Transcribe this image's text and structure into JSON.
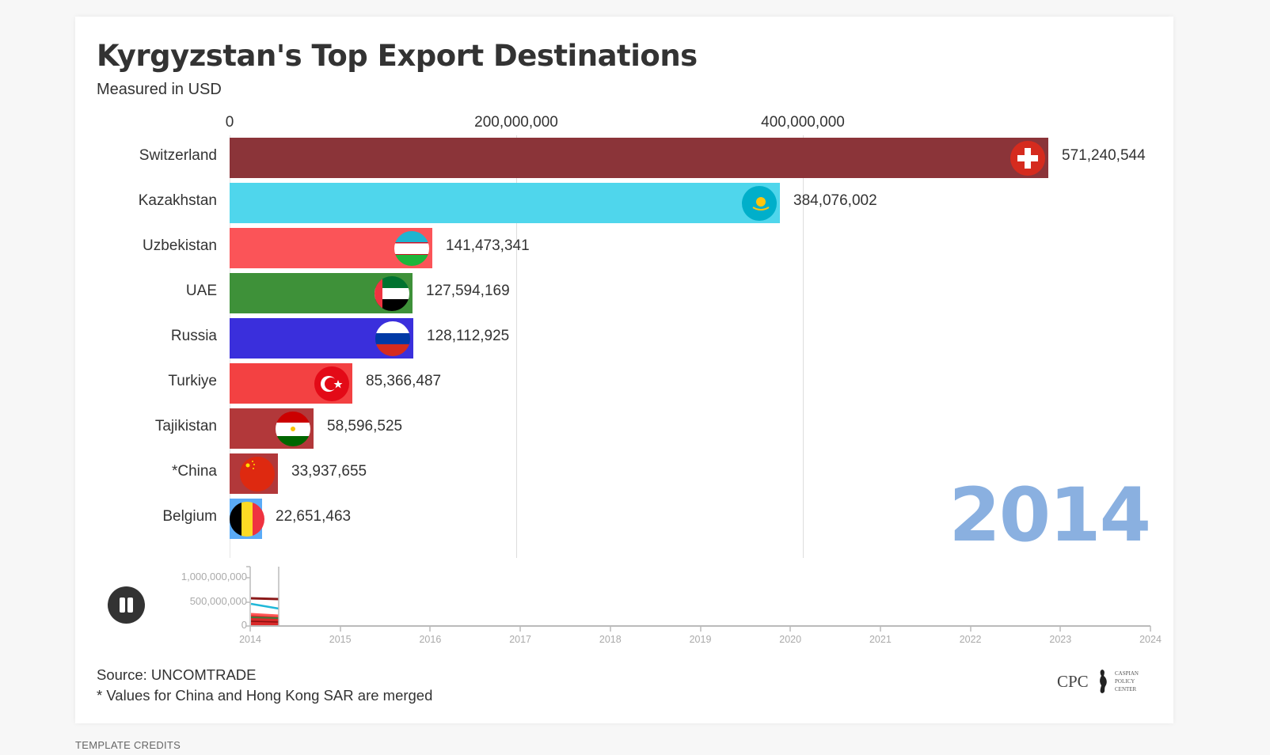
{
  "header": {
    "title": "Kyrgyzstan's Top Export Destinations",
    "subtitle": "Measured in USD"
  },
  "axis": {
    "ticks": [
      {
        "label": "0",
        "value": 0
      },
      {
        "label": "200,000,000",
        "value": 200000000
      },
      {
        "label": "400,000,000",
        "value": 400000000
      }
    ]
  },
  "current_year": "2014",
  "bars": [
    {
      "country": "Switzerland",
      "value_label": "571,240,544",
      "value": 571240544,
      "color": "#8b3439",
      "flag": "switzerland-flag"
    },
    {
      "country": "Kazakhstan",
      "value_label": "384,076,002",
      "value": 384076002,
      "color": "#4fd6ec",
      "flag": "kazakhstan-flag"
    },
    {
      "country": "Uzbekistan",
      "value_label": "141,473,341",
      "value": 141473341,
      "color": "#fb5458",
      "flag": "uzbekistan-flag"
    },
    {
      "country": "UAE",
      "value_label": "127,594,169",
      "value": 127594169,
      "color": "#3e9139",
      "flag": "uae-flag"
    },
    {
      "country": "Russia",
      "value_label": "128,112,925",
      "value": 128112925,
      "color": "#3a2fdc",
      "flag": "russia-flag"
    },
    {
      "country": "Turkiye",
      "value_label": "85,366,487",
      "value": 85366487,
      "color": "#f34142",
      "flag": "turkiye-flag"
    },
    {
      "country": "Tajikistan",
      "value_label": "58,596,525",
      "value": 58596525,
      "color": "#b2383a",
      "flag": "tajikistan-flag"
    },
    {
      "country": "*China",
      "value_label": "33,937,655",
      "value": 33937655,
      "color": "#b2383a",
      "flag": "china-flag"
    },
    {
      "country": "Belgium",
      "value_label": "22,651,463",
      "value": 22651463,
      "color": "#5aabf7",
      "flag": "belgium-flag"
    }
  ],
  "timeline": {
    "play_state": "playing",
    "y_ticks": [
      "1,000,000,000",
      "500,000,000",
      "0"
    ],
    "years": [
      "2014",
      "2015",
      "2016",
      "2017",
      "2018",
      "2019",
      "2020",
      "2021",
      "2022",
      "2023",
      "2024"
    ]
  },
  "footer": {
    "source": "Source: UNCOMTRADE",
    "note": "* Values for China and Hong Kong SAR are merged",
    "logo_text": "CPC",
    "logo_sub": [
      "CASPIAN",
      "POLICY",
      "CENTER"
    ],
    "credits": "TEMPLATE CREDITS"
  },
  "chart_data": {
    "type": "bar",
    "orientation": "horizontal",
    "title": "Kyrgyzstan's Top Export Destinations",
    "subtitle": "Measured in USD",
    "year": 2014,
    "categories": [
      "Switzerland",
      "Kazakhstan",
      "Uzbekistan",
      "UAE",
      "Russia",
      "Turkiye",
      "Tajikistan",
      "*China",
      "Belgium"
    ],
    "values": [
      571240544,
      384076002,
      141473341,
      127594169,
      128112925,
      85366487,
      58596525,
      33937655,
      22651463
    ],
    "xlabel": "",
    "ylabel": "",
    "x_ticks": [
      0,
      200000000,
      400000000
    ],
    "grid": true,
    "annotations": [
      "2014",
      "Source: UNCOMTRADE",
      "* Values for China and Hong Kong SAR are merged"
    ],
    "timeline_range": [
      2014,
      2024
    ]
  }
}
